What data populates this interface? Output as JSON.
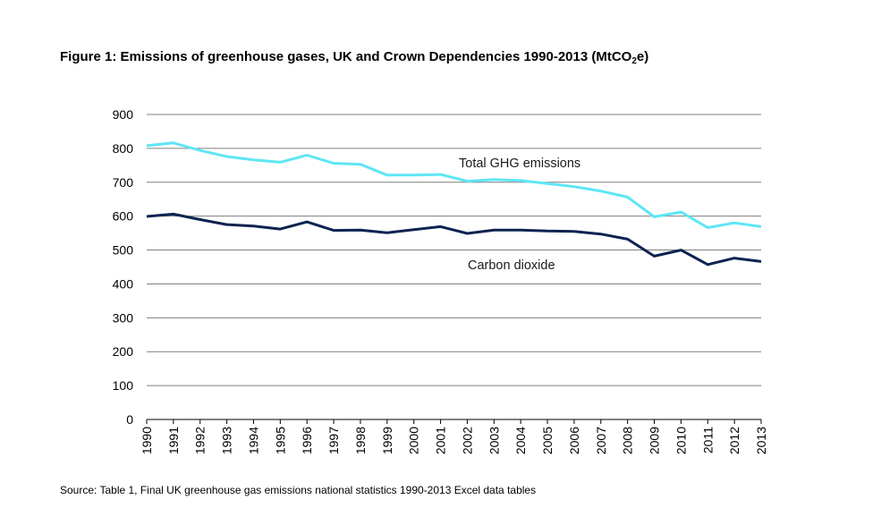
{
  "figure": {
    "title_main": "Figure 1: Emissions of greenhouse gases, UK and Crown Dependencies 1990-2013 (MtCO",
    "title_sub": "2",
    "title_end": "e)",
    "source": "Source: Table 1, Final UK greenhouse gas emissions national statistics 1990-2013 Excel data tables"
  },
  "chart_data": {
    "type": "line",
    "title": "Figure 1: Emissions of greenhouse gases, UK and Crown Dependencies 1990-2013 (MtCO2e)",
    "xlabel": "",
    "ylabel": "",
    "x": [
      "1990",
      "1991",
      "1992",
      "1993",
      "1994",
      "1995",
      "1996",
      "1997",
      "1998",
      "1999",
      "2000",
      "2001",
      "2002",
      "2003",
      "2004",
      "2005",
      "2006",
      "2007",
      "2008",
      "2009",
      "2010",
      "2011",
      "2012",
      "2013"
    ],
    "ylim": [
      0,
      900
    ],
    "yticks": [
      0,
      100,
      200,
      300,
      400,
      500,
      600,
      700,
      800,
      900
    ],
    "grid": true,
    "legend": "none",
    "series": [
      {
        "name": "Total GHG emissions",
        "color": "#5ee6f5",
        "values": [
          808,
          816,
          794,
          776,
          766,
          759,
          780,
          756,
          753,
          721,
          721,
          723,
          703,
          708,
          705,
          696,
          687,
          674,
          656,
          598,
          612,
          566,
          580,
          569
        ]
      },
      {
        "name": "Carbon dioxide",
        "color": "#0d2350",
        "values": [
          599,
          606,
          590,
          575,
          571,
          562,
          583,
          558,
          559,
          551,
          560,
          569,
          549,
          559,
          559,
          556,
          555,
          547,
          532,
          482,
          500,
          457,
          476,
          466
        ]
      }
    ]
  }
}
